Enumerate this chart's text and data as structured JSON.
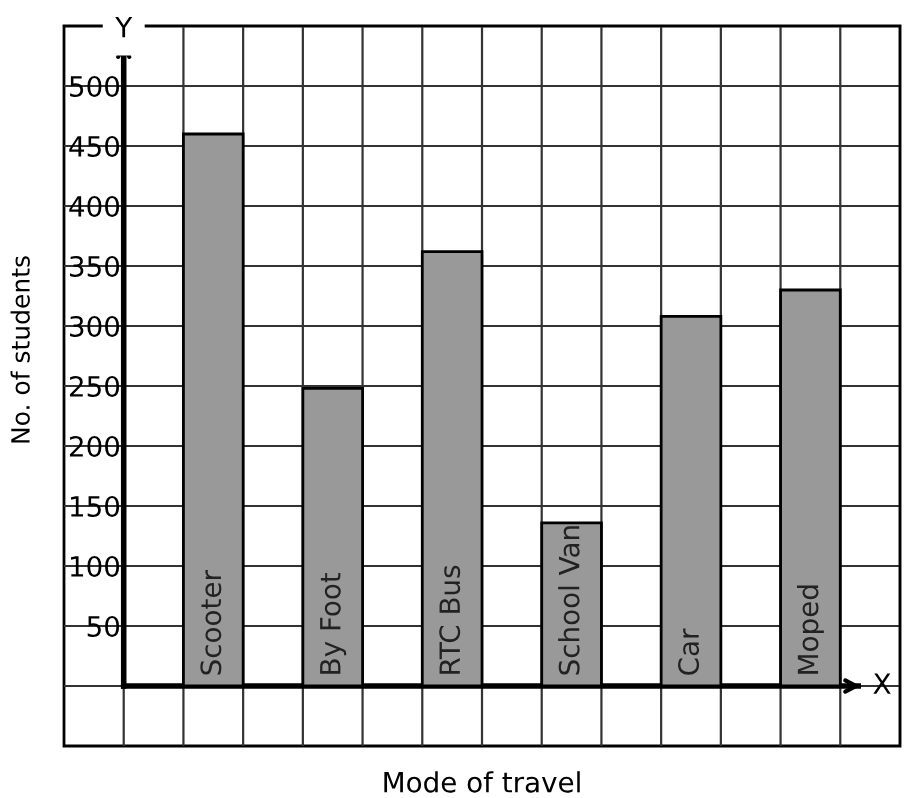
{
  "chart_data": {
    "type": "bar",
    "categories": [
      "Scooter",
      "By Foot",
      "RTC Bus",
      "School Van",
      "Car",
      "Moped"
    ],
    "values": [
      460,
      248,
      362,
      136,
      308,
      330
    ],
    "color": "#999999",
    "xlabel": "Mode of travel",
    "ylabel": "No. of students",
    "annotations": [
      "Y",
      "X"
    ],
    "ylim": [
      -50,
      550
    ],
    "yticks": [
      50,
      100,
      150,
      200,
      250,
      300,
      350,
      400,
      450,
      500
    ],
    "grid": true,
    "tick_labels": "y"
  }
}
